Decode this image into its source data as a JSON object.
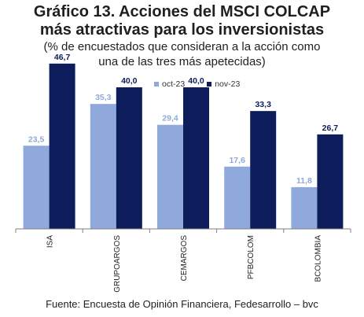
{
  "title_line1": "Gráfico 13. Acciones del MSCI COLCAP",
  "title_line2": "más atractivas para los inversionistas",
  "subtitle_line1": "(% de encuestados que consideran a la acción como",
  "subtitle_line2": "una de las tres más apetecidas)",
  "source": "Fuente: Encuesta de Opinión Financiera, Fedesarrollo – bvc",
  "colors": {
    "oct": "#8fa9dc",
    "nov": "#0d1c5a",
    "oct_label": "#8fa9dc",
    "nov_label": "#0d1c5a"
  },
  "chart_data": {
    "type": "bar",
    "categories": [
      "ISA",
      "GRUPOARGOS",
      "CEMARGOS",
      "PFBCOLOM",
      "BCOLOMBIA"
    ],
    "series": [
      {
        "name": "oct-23",
        "values": [
          23.5,
          35.3,
          29.4,
          17.6,
          11.8
        ],
        "labels": [
          "23,5",
          "35,3",
          "29,4",
          "17,6",
          "11,8"
        ]
      },
      {
        "name": "nov-23",
        "values": [
          46.7,
          40.0,
          40.0,
          33.3,
          26.7
        ],
        "labels": [
          "46,7",
          "40,0",
          "40,0",
          "33,3",
          "26,7"
        ]
      }
    ],
    "ylim": [
      0,
      56
    ],
    "grid": false,
    "legend_position": "top-right"
  }
}
